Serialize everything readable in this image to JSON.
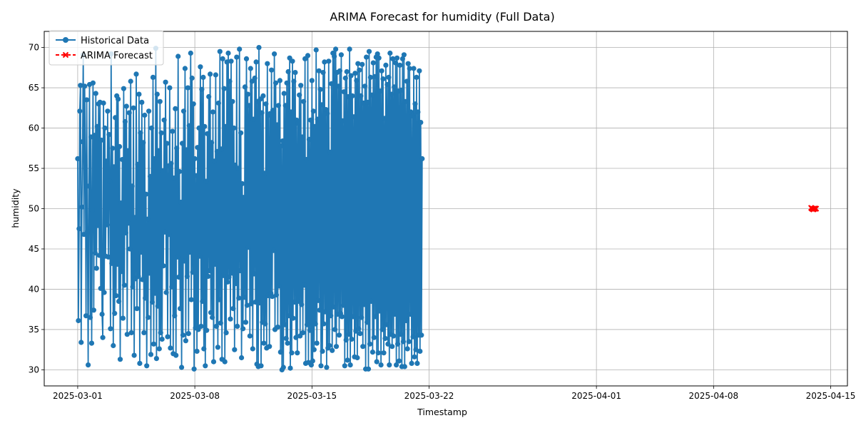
{
  "chart_data": {
    "type": "line",
    "title": "ARIMA Forecast for humidity (Full Data)",
    "xlabel": "Timestamp",
    "ylabel": "humidity",
    "xlim": [
      "2025-02-27T00:00",
      "2025-04-16T00:00"
    ],
    "ylim": [
      28,
      72
    ],
    "grid": true,
    "legend_position": "top-left",
    "x_ticks": [
      {
        "value": "2025-03-01",
        "label": "2025-03-01"
      },
      {
        "value": "2025-03-08",
        "label": "2025-03-08"
      },
      {
        "value": "2025-03-15",
        "label": "2025-03-15"
      },
      {
        "value": "2025-03-22",
        "label": "2025-03-22"
      },
      {
        "value": "2025-04-01",
        "label": "2025-04-01"
      },
      {
        "value": "2025-04-08",
        "label": "2025-04-08"
      },
      {
        "value": "2025-04-15",
        "label": "2025-04-15"
      }
    ],
    "y_ticks": [
      30,
      35,
      40,
      45,
      50,
      55,
      60,
      65,
      70
    ],
    "series": [
      {
        "name": "Historical Data",
        "color": "#1f77b4",
        "style": "line-with-circle-markers",
        "start": "2025-03-01T00:00",
        "interval_hours": 1,
        "values": [
          56.2,
          36.1,
          47.5,
          62.1,
          65.3,
          33.4,
          50.2,
          58.3,
          69.1,
          46.8,
          65.2,
          55.0,
          36.7,
          63.5,
          47.2,
          30.6,
          52.8,
          65.4,
          36.5,
          58.9,
          33.3,
          49.8,
          65.6,
          37.4,
          59.1,
          44.5,
          64.3,
          42.6,
          60.2,
          47.9,
          63.0,
          44.2,
          63.2,
          40.1,
          58.5,
          36.9,
          34.0,
          63.1,
          39.6,
          60.0,
          44.1,
          55.9,
          48.0,
          62.1,
          44.0,
          59.2,
          53.4,
          35.1,
          69.2,
          43.2,
          57.5,
          33.0,
          55.2,
          37.0,
          61.3,
          39.2,
          64.0,
          43.1,
          63.6,
          38.5,
          57.7,
          31.3,
          50.7,
          42.2,
          56.1,
          36.4,
          64.9,
          40.5,
          60.8,
          47.0,
          62.7,
          34.4,
          57.2,
          48.2,
          61.9,
          45.0,
          65.8,
          34.6,
          52.8,
          40.3,
          62.5,
          31.8,
          48.9,
          41.3,
          66.7,
          37.6,
          55.5,
          41.6,
          64.2,
          30.8,
          59.4,
          44.6,
          63.2,
          41.2,
          58.2,
          34.6,
          61.6,
          38.9,
          51.8,
          30.5,
          48.7,
          36.5,
          62.1,
          42.0,
          54.0,
          31.9,
          60.0,
          38.4,
          66.3,
          33.2,
          56.2,
          39.5,
          69.9,
          31.4,
          64.2,
          37.9,
          57.2,
          32.6,
          63.3,
          34.6,
          59.4,
          33.8,
          54.7,
          42.9,
          61.0,
          47.1,
          65.7,
          39.6,
          58.1,
          34.1,
          55.3,
          46.8,
          65.0,
          32.7,
          55.6,
          40.3,
          59.6,
          32.0,
          53.8,
          36.7,
          62.4,
          31.8,
          57.5,
          44.0,
          68.9,
          41.5,
          54.6,
          37.6,
          50.8,
          30.3,
          58.1,
          34.3,
          62.1,
          43.5,
          67.4,
          33.6,
          57.3,
          41.6,
          65.0,
          34.5,
          60.3,
          44.6,
          69.3,
          38.7,
          66.2,
          42.1,
          63.0,
          30.1,
          56.2,
          35.2,
          54.1,
          32.3,
          57.6,
          35.0,
          60.0,
          44.1,
          67.6,
          35.4,
          64.8,
          38.5,
          66.3,
          32.6,
          60.2,
          30.5,
          53.4,
          34.9,
          59.3,
          41.6,
          63.9,
          42.3,
          66.7,
          37.1,
          58.2,
          36.5,
          62.0,
          31.0,
          55.9,
          43.1,
          66.6,
          35.4,
          57.1,
          32.8,
          63.1,
          38.7,
          69.5,
          35.8,
          57.4,
          31.3,
          68.6,
          41.7,
          64.9,
          31.0,
          60.2,
          34.6,
          68.2,
          40.9,
          69.3,
          41.5,
          65.8,
          36.3,
          68.3,
          42.0,
          63.3,
          37.6,
          60.0,
          32.5,
          55.4,
          40.7,
          68.8,
          35.4,
          55.0,
          38.9,
          69.8,
          42.3,
          59.4,
          31.5,
          53.1,
          35.1,
          51.4,
          39.0,
          65.1,
          35.9,
          68.6,
          38.0,
          64.2,
          45.2,
          62.8,
          34.2,
          67.4,
          38.2,
          65.8,
          32.6,
          61.1,
          41.9,
          66.2,
          38.4,
          68.2,
          30.7,
          63.3,
          30.4,
          70.0,
          38.3,
          63.6,
          30.5,
          61.9,
          35.9,
          64.0,
          33.3,
          54.4,
          35.7,
          63.0,
          32.7,
          68.0,
          39.2,
          61.6,
          32.9,
          61.8,
          39.5,
          67.2,
          39.1,
          62.2,
          44.8,
          69.2,
          35.0,
          65.6,
          39.3,
          60.4,
          35.3,
          62.8,
          40.4,
          65.9,
          32.2,
          57.8,
          30.0,
          58.4,
          30.3,
          64.3,
          35.6,
          62.8,
          33.9,
          65.6,
          33.3,
          67.0,
          36.7,
          68.7,
          30.2,
          62.0,
          32.1,
          68.3,
          36.4,
          65.8,
          38.4,
          66.9,
          34.0,
          61.0,
          32.1,
          60.6,
          38.5,
          64.1,
          34.2,
          65.3,
          38.1,
          58.9,
          34.6,
          63.3,
          40.5,
          68.6,
          30.8,
          56.1,
          35.6,
          69.0,
          30.9,
          58.6,
          34.9,
          61.0,
          30.6,
          65.9,
          31.1,
          62.1,
          32.5,
          60.2,
          35.7,
          69.7,
          33.3,
          61.1,
          38.6,
          67.1,
          37.4,
          64.8,
          30.5,
          62.9,
          32.3,
          66.9,
          35.7,
          68.2,
          37.2,
          62.3,
          30.3,
          61.8,
          32.7,
          68.3,
          33.0,
          57.0,
          36.7,
          65.5,
          32.4,
          69.3,
          37.8,
          68.9,
          35.0,
          69.8,
          32.9,
          66.9,
          36.9,
          65.2,
          34.3,
          67.1,
          37.0,
          69.1,
          36.6,
          60.9,
          38.0,
          64.5,
          30.5,
          66.2,
          33.7,
          67.0,
          31.2,
          63.9,
          34.4,
          69.8,
          30.6,
          66.5,
          33.8,
          64.0,
          36.6,
          61.4,
          31.6,
          66.8,
          34.8,
          65.9,
          31.5,
          68.0,
          35.1,
          67.2,
          34.5,
          64.0,
          36.5,
          67.9,
          32.9,
          63.1,
          38.1,
          65.2,
          30.1,
          68.8,
          35.9,
          63.2,
          30.1,
          69.5,
          33.2,
          66.3,
          38.5,
          64.1,
          32.2,
          68.1,
          34.0,
          66.4,
          36.6,
          68.8,
          31.0,
          69.2,
          32.1,
          68.7,
          37.3,
          64.6,
          30.6,
          67.1,
          35.0,
          66.1,
          32.1,
          61.2,
          33.9,
          67.8,
          35.6,
          65.4,
          33.2,
          66.3,
          30.6,
          69.3,
          34.4,
          64.2,
          32.9,
          68.6,
          34.2,
          65.1,
          36.9,
          68.1,
          30.6,
          68.7,
          33.2,
          64.6,
          31.1,
          67.8,
          34.4,
          64.7,
          30.4,
          68.6,
          33.5,
          69.1,
          30.4,
          63.3,
          36.1,
          65.8,
          32.6,
          68.0,
          33.5,
          67.4,
          36.9,
          62.0,
          30.8,
          61.5,
          34.1,
          67.4,
          31.6,
          63.0,
          32.5,
          66.3,
          30.8,
          62.0,
          34.3,
          67.1,
          32.3,
          60.7,
          34.3,
          56.2
        ]
      },
      {
        "name": "ARIMA Forecast",
        "color": "#ff0000",
        "style": "dashed-with-x-markers",
        "start": "2025-04-13T20:00",
        "interval_hours": 1,
        "values": [
          50.1,
          50.0,
          50.0,
          49.9,
          50.0,
          50.0,
          50.0,
          50.0
        ]
      }
    ]
  }
}
